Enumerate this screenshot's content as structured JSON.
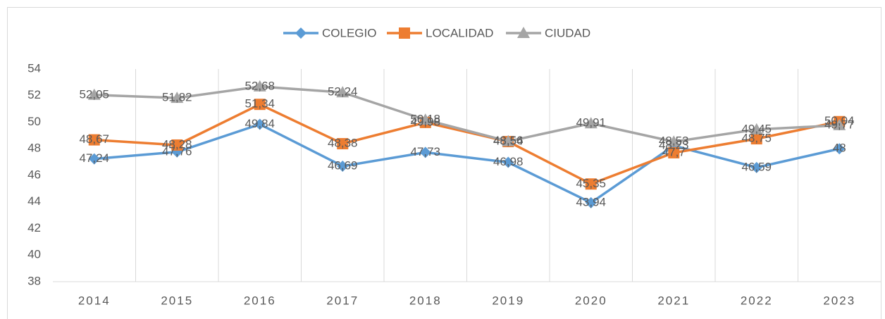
{
  "chart_data": {
    "type": "line",
    "categories": [
      "2014",
      "2015",
      "2016",
      "2017",
      "2018",
      "2019",
      "2020",
      "2021",
      "2022",
      "2023"
    ],
    "series": [
      {
        "name": "COLEGIO",
        "color": "#5b9bd5",
        "marker": "diamond",
        "values": [
          47.24,
          47.76,
          49.84,
          46.69,
          47.73,
          46.98,
          43.94,
          48.23,
          46.59,
          48
        ],
        "value_labels": [
          "47,24",
          "47,76",
          "49,84",
          "46,69",
          "47,73",
          "46,98",
          "43,94",
          "48,23",
          "46,59",
          "48"
        ]
      },
      {
        "name": "LOCALIDAD",
        "color": "#ed7d31",
        "marker": "square",
        "values": [
          48.67,
          48.28,
          51.34,
          48.38,
          49.98,
          48.54,
          45.35,
          47.7,
          48.75,
          50.04
        ],
        "value_labels": [
          "48,67",
          "48,28",
          "51,34",
          "48,38",
          "49,98",
          "48,54",
          "45,35",
          "47,7",
          "48,75",
          "50,04"
        ]
      },
      {
        "name": "CIUDAD",
        "color": "#a5a5a5",
        "marker": "triangle",
        "values": [
          52.05,
          51.82,
          52.68,
          52.24,
          50.18,
          48.56,
          49.91,
          48.53,
          49.45,
          49.77
        ],
        "value_labels": [
          "52,05",
          "51,82",
          "52,68",
          "52,24",
          "50,18",
          "48,56",
          "49,91",
          "48,53",
          "49,45",
          "49,77"
        ]
      }
    ],
    "ylim": [
      38,
      54
    ],
    "yticks": [
      38,
      40,
      42,
      44,
      46,
      48,
      50,
      52,
      54
    ],
    "legend": "top"
  }
}
